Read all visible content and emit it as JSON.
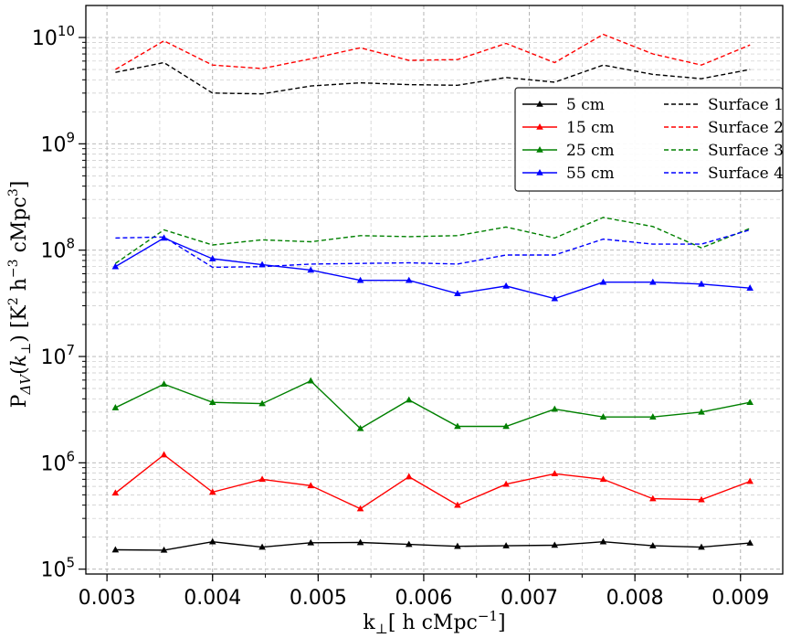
{
  "chart_data": {
    "type": "line",
    "xlabel": "k⊥[ h cMpc⁻¹]",
    "ylabel": "PΔV(k⊥) [K² h⁻³ cMpc³]",
    "y_scale": "log",
    "xlim": [
      0.0028,
      0.0094
    ],
    "ylim": [
      90000,
      20000000000
    ],
    "x_ticks": [
      0.003,
      0.004,
      0.005,
      0.006,
      0.007,
      0.008,
      0.009
    ],
    "x_tick_labels": [
      "0.003",
      "0.004",
      "0.005",
      "0.006",
      "0.007",
      "0.008",
      "0.009"
    ],
    "y_ticks": [
      100000,
      1000000,
      10000000,
      100000000,
      1000000000,
      10000000000
    ],
    "y_tick_labels": [
      {
        "base": "10",
        "exp": "5"
      },
      {
        "base": "10",
        "exp": "6"
      },
      {
        "base": "10",
        "exp": "7"
      },
      {
        "base": "10",
        "exp": "8"
      },
      {
        "base": "10",
        "exp": "9"
      },
      {
        "base": "10",
        "exp": "10"
      }
    ],
    "grid": true,
    "legend_position": "upper-right",
    "x": [
      0.00308,
      0.00354,
      0.004,
      0.00447,
      0.00493,
      0.0054,
      0.00586,
      0.00632,
      0.00678,
      0.00724,
      0.0077,
      0.00817,
      0.00863,
      0.00909
    ],
    "series": [
      {
        "name": "5 cm",
        "color": "#000000",
        "style": "solid",
        "marker": "triangle",
        "values": [
          152000,
          151000,
          181000,
          161000,
          177000,
          178000,
          171000,
          164000,
          166000,
          168000,
          181000,
          166000,
          161000,
          176000
        ]
      },
      {
        "name": "15 cm",
        "color": "#ff0000",
        "style": "solid",
        "marker": "triangle",
        "values": [
          520000,
          1190000,
          530000,
          700000,
          610000,
          370000,
          740000,
          400000,
          630000,
          790000,
          700000,
          460000,
          450000,
          670000
        ]
      },
      {
        "name": "25 cm",
        "color": "#008000",
        "style": "solid",
        "marker": "triangle",
        "values": [
          3300000,
          5500000,
          3700000,
          3600000,
          5900000,
          2100000,
          3900000,
          2200000,
          2200000,
          3200000,
          2700000,
          2700000,
          3000000,
          3700000
        ]
      },
      {
        "name": "55 cm",
        "color": "#0000ff",
        "style": "solid",
        "marker": "triangle",
        "values": [
          70000000,
          130000000,
          83000000,
          73000000,
          65000000,
          52000000,
          52000000,
          39000000,
          46000000,
          35000000,
          50000000,
          50000000,
          48000000,
          44000000
        ]
      },
      {
        "name": "Surface 1",
        "color": "#000000",
        "style": "dashed",
        "marker": "none",
        "values": [
          4700000000,
          5800000000,
          3000000000,
          2950000000,
          3500000000,
          3750000000,
          3600000000,
          3550000000,
          4200000000,
          3800000000,
          5500000000,
          4500000000,
          4100000000,
          5000000000
        ]
      },
      {
        "name": "Surface 2",
        "color": "#ff0000",
        "style": "dashed",
        "marker": "none",
        "values": [
          5000000000,
          9300000000,
          5500000000,
          5100000000,
          6300000000,
          8000000000,
          6100000000,
          6200000000,
          8800000000,
          5800000000,
          10700000000,
          7000000000,
          5500000000,
          8500000000
        ]
      },
      {
        "name": "Surface 3",
        "color": "#008000",
        "style": "dashed",
        "marker": "none",
        "values": [
          75000000,
          155000000,
          112000000,
          125000000,
          120000000,
          137000000,
          134000000,
          137000000,
          165000000,
          130000000,
          203000000,
          167000000,
          105000000,
          160000000
        ]
      },
      {
        "name": "Surface 4",
        "color": "#0000ff",
        "style": "dashed",
        "marker": "none",
        "values": [
          130000000,
          133000000,
          69000000,
          70000000,
          74000000,
          75000000,
          76000000,
          74000000,
          90000000,
          90000000,
          127000000,
          114000000,
          114000000,
          155000000
        ]
      }
    ]
  }
}
